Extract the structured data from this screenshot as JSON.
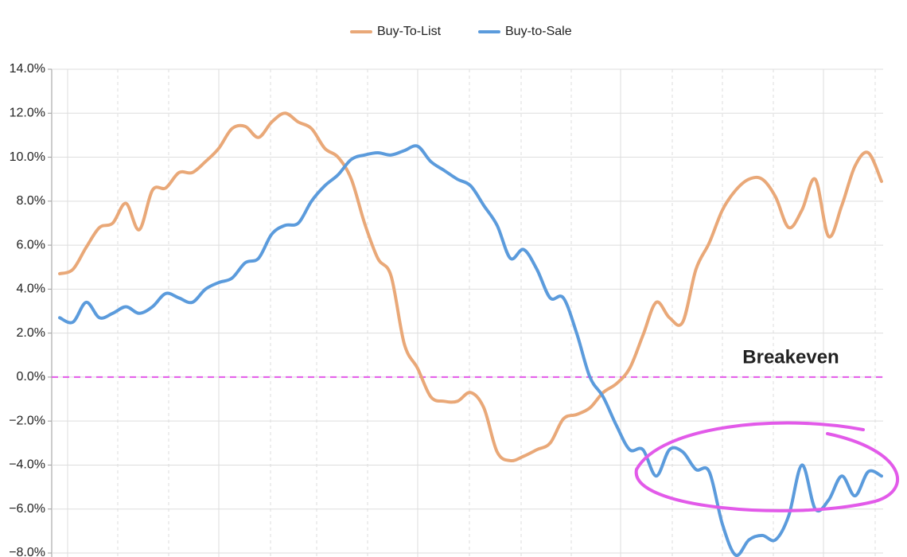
{
  "chart_data": {
    "type": "line",
    "categories": [
      null,
      null,
      null,
      null,
      null,
      null,
      null,
      null,
      null,
      null,
      null,
      null,
      null,
      null,
      null,
      null,
      null,
      null,
      null,
      null,
      null,
      null,
      null,
      null,
      null,
      null,
      null,
      null,
      null,
      null,
      null,
      null,
      null,
      null,
      null,
      null,
      null,
      null,
      null,
      null,
      null,
      null,
      null,
      null,
      null,
      null,
      null,
      null,
      null,
      null,
      null,
      null,
      null,
      null,
      null,
      null,
      null,
      null,
      null,
      null,
      null,
      null,
      null
    ],
    "series": [
      {
        "name": "Buy-To-List",
        "color": "#e9a878",
        "values": [
          4.7,
          4.9,
          5.9,
          6.8,
          7.0,
          7.9,
          6.7,
          8.5,
          8.6,
          9.3,
          9.3,
          9.8,
          10.4,
          11.3,
          11.4,
          10.9,
          11.6,
          12.0,
          11.6,
          11.3,
          10.4,
          10.0,
          9.0,
          7.0,
          5.4,
          4.6,
          1.5,
          0.4,
          -0.9,
          -1.1,
          -1.1,
          -0.7,
          -1.4,
          -3.4,
          -3.8,
          -3.6,
          -3.3,
          -3.0,
          -1.9,
          -1.7,
          -1.4,
          -0.7,
          -0.3,
          0.4,
          1.9,
          3.4,
          2.7,
          2.5,
          4.9,
          6.1,
          7.6,
          8.5,
          9.0,
          9.0,
          8.2,
          6.8,
          7.6,
          9.0,
          6.4,
          7.8,
          9.6,
          10.2,
          8.9
        ]
      },
      {
        "name": "Buy-to-Sale",
        "color": "#5b9bdc",
        "values": [
          2.7,
          2.5,
          3.4,
          2.7,
          2.9,
          3.2,
          2.9,
          3.2,
          3.8,
          3.6,
          3.4,
          4.0,
          4.3,
          4.5,
          5.2,
          5.4,
          6.5,
          6.9,
          7.0,
          8.0,
          8.7,
          9.2,
          9.9,
          10.1,
          10.2,
          10.1,
          10.3,
          10.5,
          9.8,
          9.4,
          9.0,
          8.7,
          7.8,
          6.9,
          5.4,
          5.8,
          4.9,
          3.6,
          3.6,
          2.0,
          0.0,
          -0.9,
          -2.2,
          -3.3,
          -3.3,
          -4.5,
          -3.3,
          -3.4,
          -4.2,
          -4.3,
          -6.7,
          -8.1,
          -7.4,
          -7.2,
          -7.4,
          -6.3,
          -4.0,
          -6.0,
          -5.6,
          -4.5,
          -5.4,
          -4.3,
          -4.5
        ]
      }
    ],
    "ylim": [
      -8,
      14
    ],
    "yticks": [
      {
        "value": -8,
        "label": "−8.0%"
      },
      {
        "value": -6,
        "label": "−6.0%"
      },
      {
        "value": -4,
        "label": "−4.0%"
      },
      {
        "value": -2,
        "label": "−2.0%"
      },
      {
        "value": 0,
        "label": "0.0%"
      },
      {
        "value": 2,
        "label": "2.0%"
      },
      {
        "value": 4,
        "label": "4.0%"
      },
      {
        "value": 6,
        "label": "6.0%"
      },
      {
        "value": 8,
        "label": "8.0%"
      },
      {
        "value": 10,
        "label": "10.0%"
      },
      {
        "value": 12,
        "label": "12.0%"
      },
      {
        "value": 14,
        "label": "14.0%"
      }
    ],
    "grid": true,
    "legend": "top",
    "reference_line": {
      "value": 0,
      "label": "Breakeven",
      "color": "#e25ae9"
    }
  }
}
